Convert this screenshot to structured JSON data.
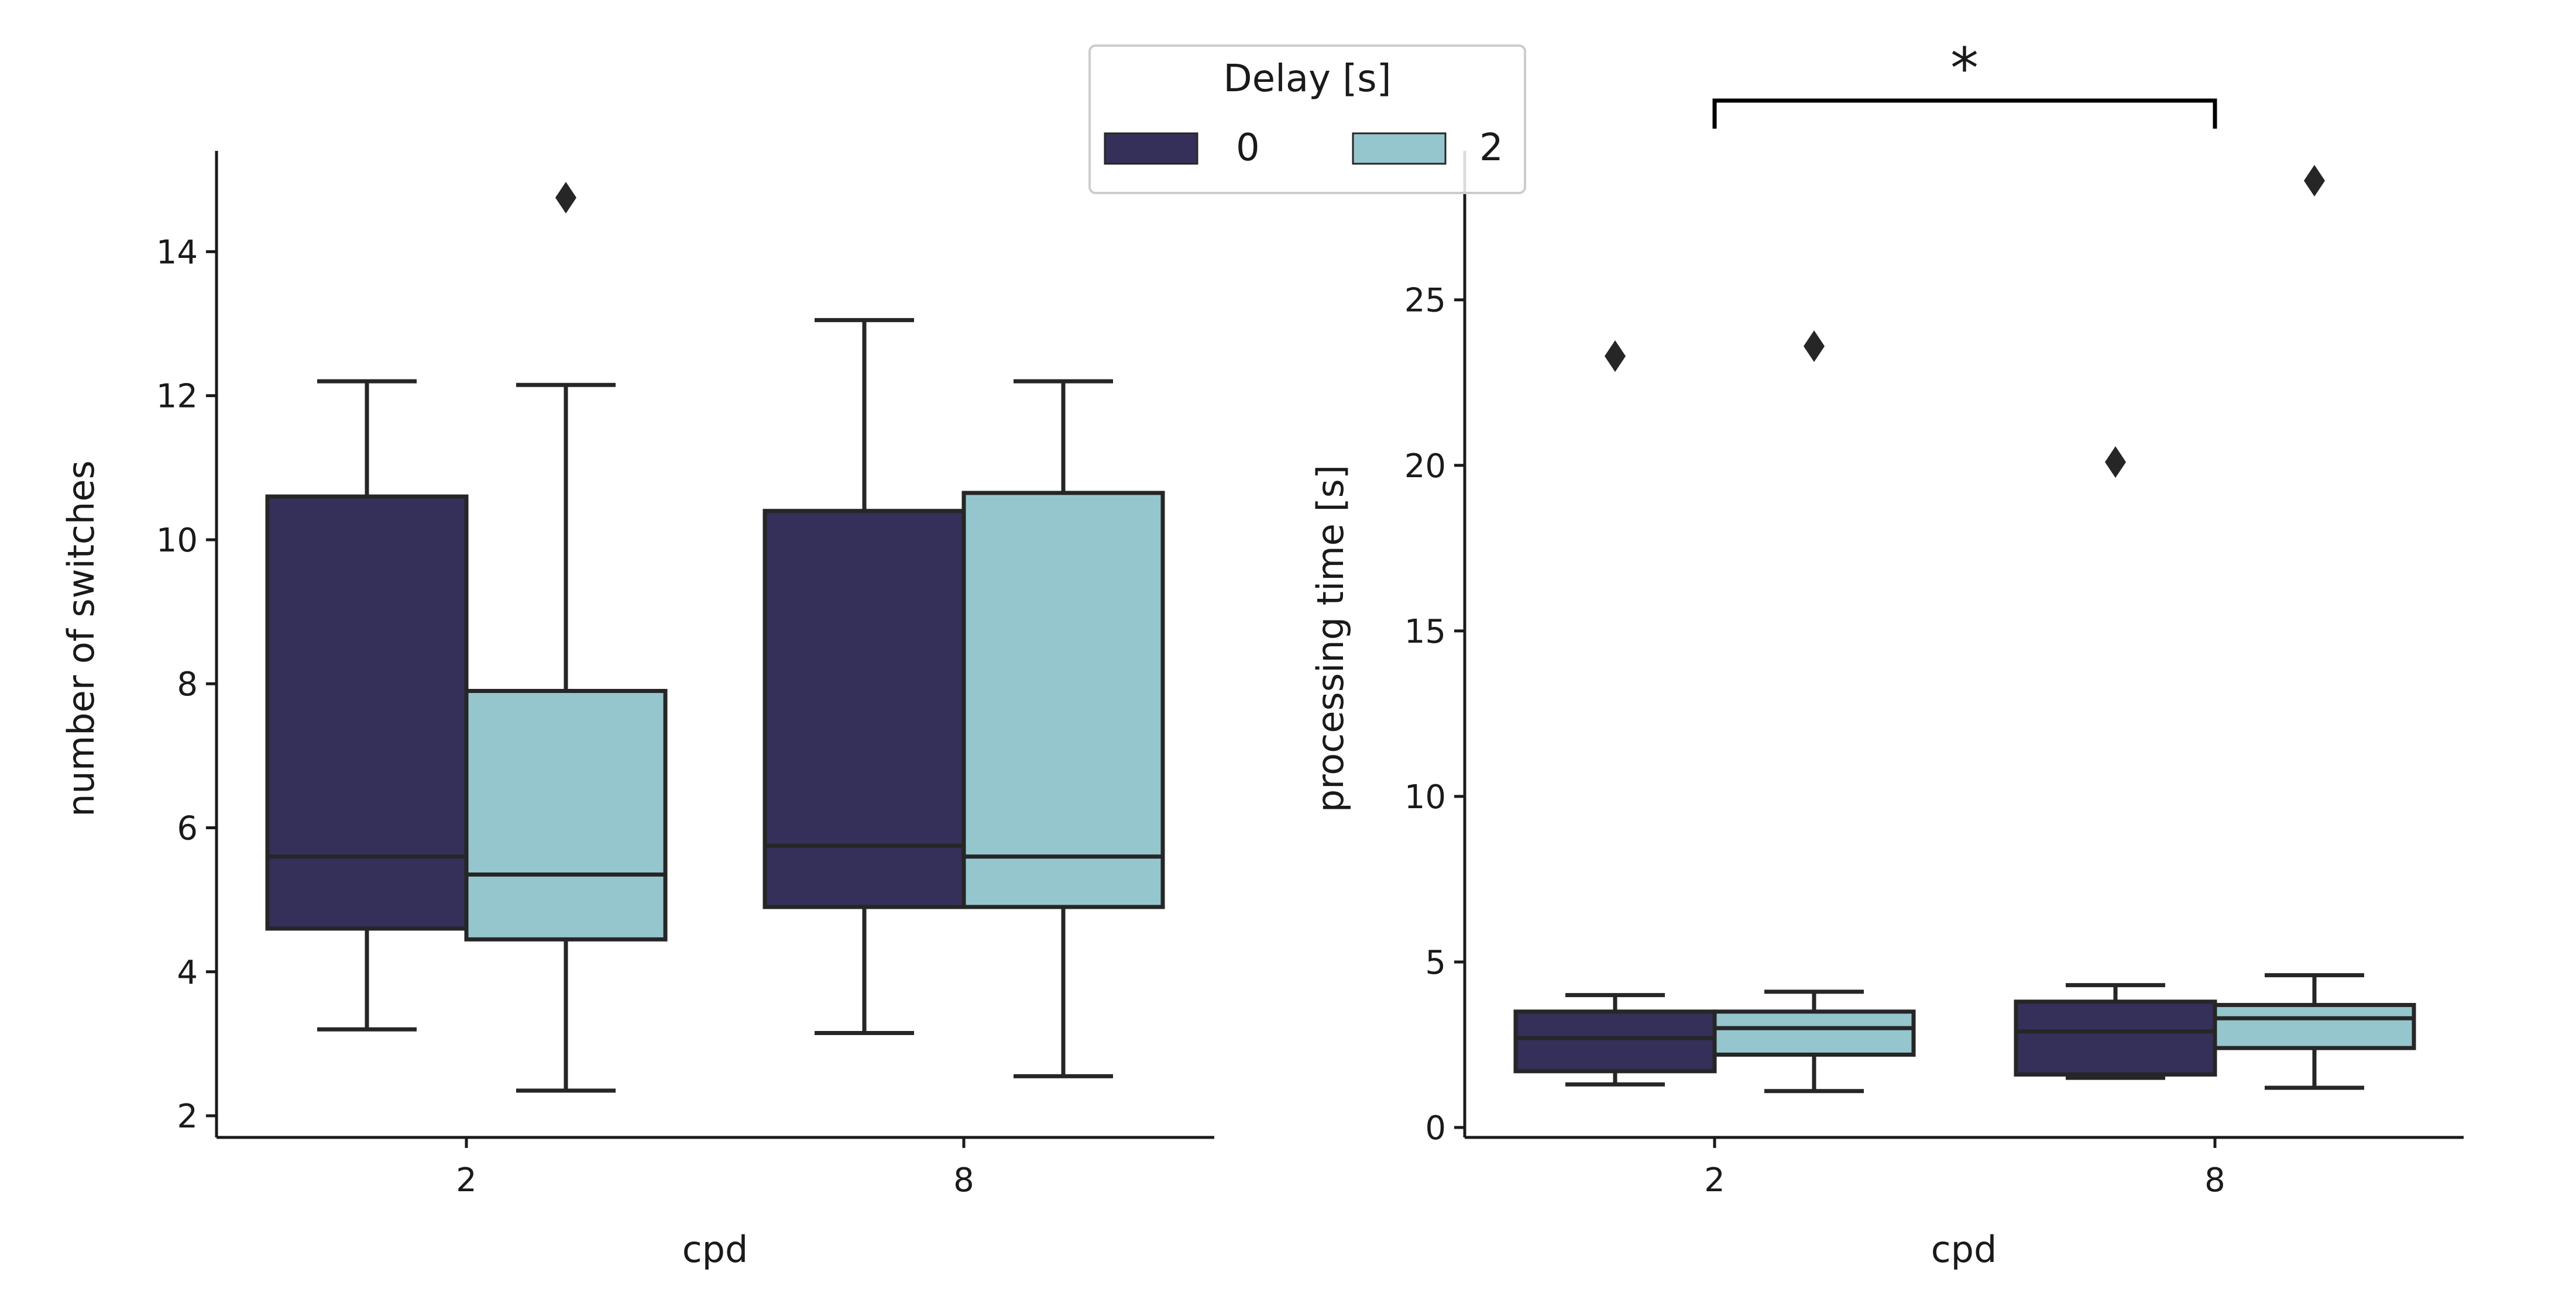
{
  "colors": {
    "delay_0": "#34305a",
    "delay_2": "#95c6cd",
    "edge": "#262626"
  },
  "legend": {
    "title": "Delay [s]",
    "entries": [
      "0",
      "2"
    ],
    "placement": "top-center"
  },
  "chart_data": [
    {
      "type": "box",
      "xlabel": "cpd",
      "ylabel": "number of switches",
      "categories": [
        "2",
        "8"
      ],
      "ylim": [
        1.7,
        15.4
      ],
      "yticks": [
        "2",
        "4",
        "6",
        "8",
        "10",
        "12",
        "14"
      ],
      "series": [
        {
          "name": "0",
          "boxes": [
            {
              "whisker_low": 3.2,
              "q1": 4.6,
              "median": 5.6,
              "q3": 10.6,
              "whisker_high": 12.2,
              "outliers": []
            },
            {
              "whisker_low": 3.15,
              "q1": 4.9,
              "median": 5.75,
              "q3": 10.4,
              "whisker_high": 13.05,
              "outliers": []
            }
          ]
        },
        {
          "name": "2",
          "boxes": [
            {
              "whisker_low": 2.35,
              "q1": 4.45,
              "median": 5.35,
              "q3": 7.9,
              "whisker_high": 12.15,
              "outliers": [
                14.75
              ]
            },
            {
              "whisker_low": 2.55,
              "q1": 4.9,
              "median": 5.6,
              "q3": 10.65,
              "whisker_high": 12.2,
              "outliers": []
            }
          ]
        }
      ]
    },
    {
      "type": "box",
      "xlabel": "cpd",
      "ylabel": "processing time [s]",
      "categories": [
        "2",
        "8"
      ],
      "ylim": [
        -0.3,
        29.5
      ],
      "yticks": [
        "0",
        "5",
        "10",
        "15",
        "20",
        "25"
      ],
      "series": [
        {
          "name": "0",
          "boxes": [
            {
              "whisker_low": 1.3,
              "q1": 1.7,
              "median": 2.7,
              "q3": 3.5,
              "whisker_high": 4.0,
              "outliers": [
                23.3
              ]
            },
            {
              "whisker_low": 1.5,
              "q1": 1.6,
              "median": 2.9,
              "q3": 3.8,
              "whisker_high": 4.3,
              "outliers": [
                20.1
              ]
            }
          ]
        },
        {
          "name": "2",
          "boxes": [
            {
              "whisker_low": 1.1,
              "q1": 2.2,
              "median": 3.0,
              "q3": 3.5,
              "whisker_high": 4.1,
              "outliers": [
                23.6
              ]
            },
            {
              "whisker_low": 1.2,
              "q1": 2.4,
              "median": 3.3,
              "q3": 3.7,
              "whisker_high": 4.6,
              "outliers": [
                28.6
              ]
            }
          ]
        }
      ],
      "annotation": {
        "text": "*",
        "from": "2",
        "to": "8"
      }
    }
  ]
}
